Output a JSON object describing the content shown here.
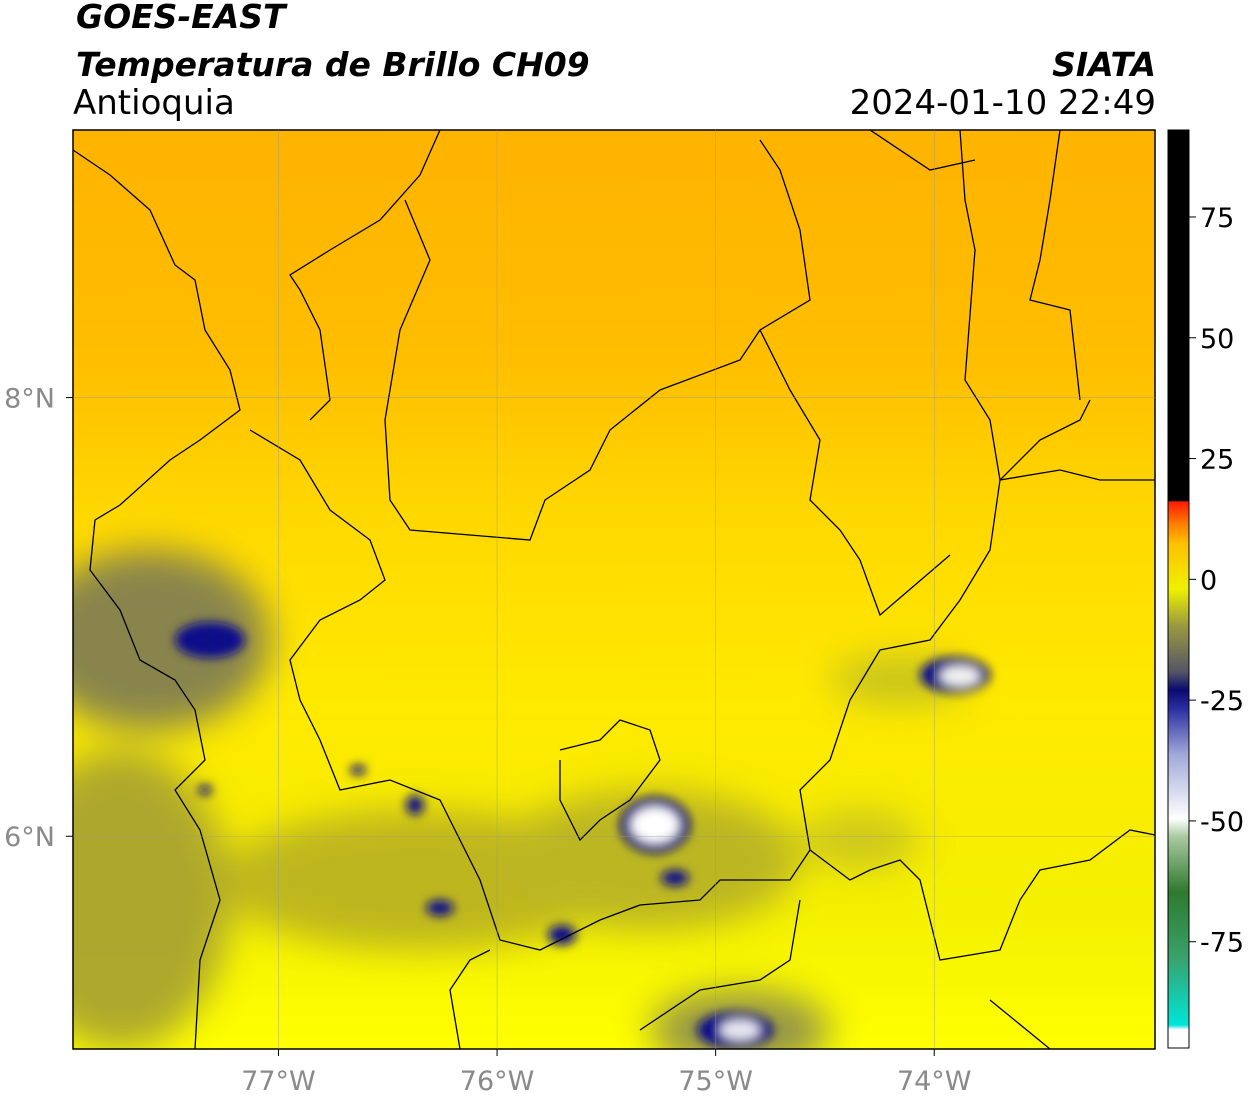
{
  "header": {
    "satellite": "GOES-EAST",
    "product": "Temperatura de Brillo CH09",
    "region": "Antioquia",
    "source": "SIATA",
    "timestamp": "2024-01-10 22:49"
  },
  "map": {
    "lon_range": [
      -77.94,
      -72.99
    ],
    "lat_range": [
      5.03,
      9.22
    ],
    "lon_ticks": [
      {
        "value": -77,
        "label": "77°W"
      },
      {
        "value": -76,
        "label": "76°W"
      },
      {
        "value": -75,
        "label": "75°W"
      },
      {
        "value": -74,
        "label": "74°W"
      }
    ],
    "lat_ticks": [
      {
        "value": 8,
        "label": "8°N"
      },
      {
        "value": 6,
        "label": "6°N"
      }
    ]
  },
  "colorbar": {
    "range": [
      -97,
      93
    ],
    "ticks": [
      75,
      50,
      25,
      0,
      -25,
      -50,
      -75
    ]
  }
}
